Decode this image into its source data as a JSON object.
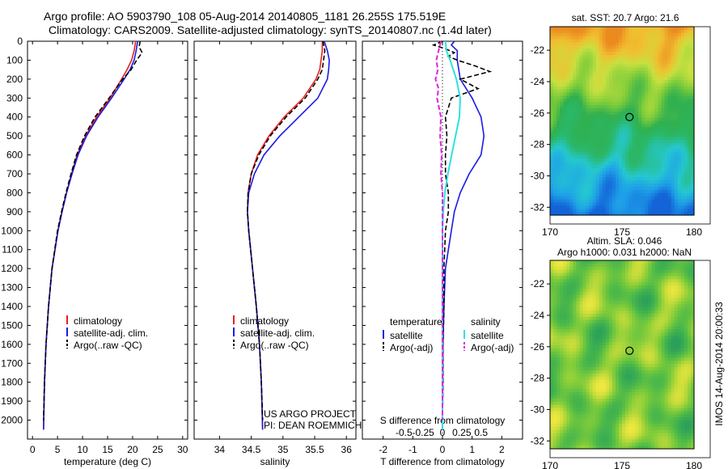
{
  "header": {
    "line1": "Argo profile: AO 5903790_108 05-Aug-2014 20140805_1181 26.255S 175.519E",
    "line2": "Climatology: CARS2009. Satellite-adjusted climatology: synTS_20140807.nc (1.4d later)"
  },
  "colors": {
    "climatology": "#e8201c",
    "satellite": "#1a1ae6",
    "argo": "#000000",
    "t_satellite": "#1a1ae6",
    "s_satellite": "#30e0e0",
    "s_argo": "#e020e0"
  },
  "chart_data": [
    {
      "type": "line",
      "xlabel": "temperature (deg C)",
      "ylabel": "",
      "xlim": [
        -1,
        31
      ],
      "ylim": [
        2100,
        0
      ],
      "xticks": [
        0,
        5,
        10,
        15,
        20,
        25,
        30
      ],
      "yticks": [
        0,
        100,
        200,
        300,
        400,
        500,
        600,
        700,
        800,
        900,
        1000,
        1100,
        1200,
        1300,
        1400,
        1500,
        1600,
        1700,
        1800,
        1900,
        2000
      ],
      "legend": [
        "climatology",
        "satellite-adj. clim.",
        "Argo(..raw -QC)"
      ],
      "legend_position": "lower-center",
      "series": [
        {
          "name": "climatology",
          "y": [
            0,
            50,
            100,
            150,
            200,
            300,
            400,
            500,
            600,
            700,
            800,
            900,
            1000,
            1200,
            1400,
            1600,
            1800,
            2050
          ],
          "x": [
            20.6,
            20.3,
            19.8,
            18.9,
            17.8,
            15.5,
            12.8,
            10.6,
            8.9,
            7.8,
            6.8,
            5.9,
            5.1,
            3.9,
            3.2,
            2.7,
            2.4,
            2.2
          ]
        },
        {
          "name": "satellite-adj. clim.",
          "y": [
            0,
            50,
            100,
            150,
            200,
            300,
            400,
            500,
            600,
            700,
            800,
            900,
            1000,
            1200,
            1400,
            1600,
            1800,
            2050
          ],
          "x": [
            21.0,
            20.7,
            20.3,
            19.5,
            18.3,
            15.8,
            13.1,
            10.8,
            9.1,
            7.9,
            6.8,
            5.9,
            5.1,
            3.9,
            3.2,
            2.7,
            2.4,
            2.2
          ]
        },
        {
          "name": "Argo(..raw -QC)",
          "y": [
            0,
            30,
            60,
            100,
            150,
            200,
            300,
            400,
            500,
            600,
            700,
            800,
            900,
            1000,
            1200,
            1400,
            1600,
            1800,
            2000
          ],
          "x": [
            21.5,
            21.3,
            21.9,
            20.8,
            19.7,
            18.0,
            15.3,
            12.5,
            10.4,
            8.8,
            7.7,
            6.7,
            5.8,
            5.0,
            3.9,
            3.2,
            2.7,
            2.4,
            2.2
          ]
        }
      ]
    },
    {
      "type": "line",
      "xlabel": "salinity",
      "xlim": [
        33.6,
        36.15
      ],
      "ylim": [
        2100,
        0
      ],
      "xticks": [
        34,
        34.5,
        35,
        35.5,
        36
      ],
      "legend": [
        "climatology",
        "satellite-adj. clim.",
        "Argo(..raw -QC)"
      ],
      "legend_position": "lower-center",
      "annotations": [
        "US ARGO PROJECT",
        "PI: DEAN ROEMMICH"
      ],
      "series": [
        {
          "name": "climatology",
          "y": [
            0,
            50,
            100,
            150,
            200,
            300,
            400,
            500,
            600,
            700,
            800,
            900,
            1000,
            1200,
            1400,
            1600,
            1800,
            2050
          ],
          "x": [
            35.62,
            35.62,
            35.6,
            35.58,
            35.52,
            35.32,
            35.02,
            34.78,
            34.6,
            34.5,
            34.45,
            34.44,
            34.46,
            34.52,
            34.58,
            34.63,
            34.66,
            34.68
          ]
        },
        {
          "name": "satellite-adj. clim.",
          "y": [
            0,
            50,
            100,
            150,
            200,
            300,
            400,
            500,
            600,
            700,
            800,
            900,
            1000,
            1200,
            1400,
            1600,
            1800,
            2050
          ],
          "x": [
            35.65,
            35.7,
            35.73,
            35.72,
            35.7,
            35.55,
            35.25,
            34.95,
            34.7,
            34.55,
            34.46,
            34.44,
            34.46,
            34.52,
            34.58,
            34.63,
            34.66,
            34.68
          ]
        },
        {
          "name": "Argo(..raw -QC)",
          "y": [
            0,
            50,
            100,
            150,
            200,
            300,
            400,
            500,
            600,
            700,
            800,
            900,
            1000,
            1200,
            1400,
            1600,
            1800,
            2000
          ],
          "x": [
            35.63,
            35.66,
            35.64,
            35.62,
            35.55,
            35.35,
            35.05,
            34.8,
            34.62,
            34.5,
            34.45,
            34.44,
            34.46,
            34.52,
            34.58,
            34.63,
            34.66,
            34.68
          ]
        }
      ]
    },
    {
      "type": "line",
      "xlabel": "T difference from climatology",
      "xlabel_top": "S difference from climatology",
      "xlim": [
        -2.7,
        2.7
      ],
      "ylim": [
        2100,
        0
      ],
      "xticks_T": [
        -2,
        -1,
        0,
        1,
        2
      ],
      "xticks_S": [
        -0.5,
        -0.25,
        0,
        0.25,
        0.5
      ],
      "xtick_labels_S": [
        "-0.5",
        "-0.25",
        "0",
        "0.25",
        "0.5"
      ],
      "legend_T": {
        "title": "temperature",
        "entries": [
          "satellite",
          "Argo(-adj)"
        ]
      },
      "legend_S": {
        "title": "salinity",
        "entries": [
          "satellite",
          "Argo(-adj)"
        ]
      },
      "series": [
        {
          "name": "T satellite",
          "y": [
            0,
            20,
            50,
            100,
            200,
            300,
            400,
            500,
            600,
            700,
            800,
            900,
            1000,
            1100,
            1200,
            1400,
            1600,
            1800,
            2050
          ],
          "x": [
            0.4,
            0.3,
            0.5,
            0.5,
            0.6,
            1.0,
            1.3,
            1.4,
            1.3,
            0.9,
            0.6,
            0.4,
            0.3,
            0.2,
            0.1,
            0.05,
            0.02,
            0.01,
            0.0
          ]
        },
        {
          "name": "T Argo(-adj)",
          "y": [
            0,
            20,
            40,
            60,
            80,
            100,
            130,
            160,
            200,
            250,
            300,
            400,
            500,
            600,
            700,
            800,
            900,
            1000,
            1200,
            1400,
            1600,
            1800,
            2000
          ],
          "x": [
            0.0,
            -0.3,
            0.1,
            0.4,
            0.2,
            0.5,
            1.1,
            1.6,
            0.6,
            1.2,
            0.3,
            0.1,
            0.15,
            0.1,
            0.1,
            0.2,
            0.2,
            0.1,
            0.05,
            0.05,
            0.02,
            0.02,
            0.0
          ]
        },
        {
          "name": "S satellite",
          "y": [
            0,
            50,
            100,
            200,
            300,
            400,
            500,
            600,
            700,
            800,
            900,
            1000,
            1200,
            1400,
            1600,
            1800,
            2050
          ],
          "x": [
            0.04,
            0.05,
            0.1,
            0.18,
            0.23,
            0.22,
            0.17,
            0.12,
            0.07,
            0.03,
            0.01,
            0.0,
            0.0,
            0.0,
            0.0,
            0.0,
            0.0
          ]
        },
        {
          "name": "S Argo(-adj)",
          "y": [
            0,
            50,
            100,
            150,
            200,
            250,
            300,
            400,
            500,
            600,
            700,
            800,
            900,
            1000,
            1200,
            1400,
            1600,
            1800,
            2000
          ],
          "x": [
            -0.02,
            -0.05,
            -0.08,
            -0.06,
            -0.09,
            -0.05,
            -0.07,
            -0.02,
            -0.03,
            -0.01,
            -0.02,
            0.0,
            0.0,
            0.0,
            0.0,
            0.0,
            0.0,
            0.0,
            0.0
          ]
        }
      ]
    },
    {
      "type": "heatmap",
      "title": "sat. SST: 20.7 Argo: 21.6",
      "xlim": [
        170,
        180
      ],
      "ylim": [
        -32.5,
        -20.5
      ],
      "xticks": [
        170,
        175,
        180
      ],
      "yticks": [
        -22,
        -24,
        -26,
        -28,
        -30,
        -32
      ],
      "marker": {
        "lon": 175.519,
        "lat": -26.255
      }
    },
    {
      "type": "heatmap",
      "title": "Altim. SLA: 0.046",
      "subtitle": "Argo h1000: 0.031 h2000: NaN",
      "xlim": [
        170,
        180
      ],
      "ylim": [
        -32.5,
        -20.5
      ],
      "xticks": [
        170,
        175,
        180
      ],
      "yticks": [
        -22,
        -24,
        -26,
        -28,
        -30,
        -32
      ],
      "marker": {
        "lon": 175.519,
        "lat": -26.255
      }
    }
  ],
  "footer": {
    "credit": "IMOS 14-Aug-2014 20:00:33"
  }
}
